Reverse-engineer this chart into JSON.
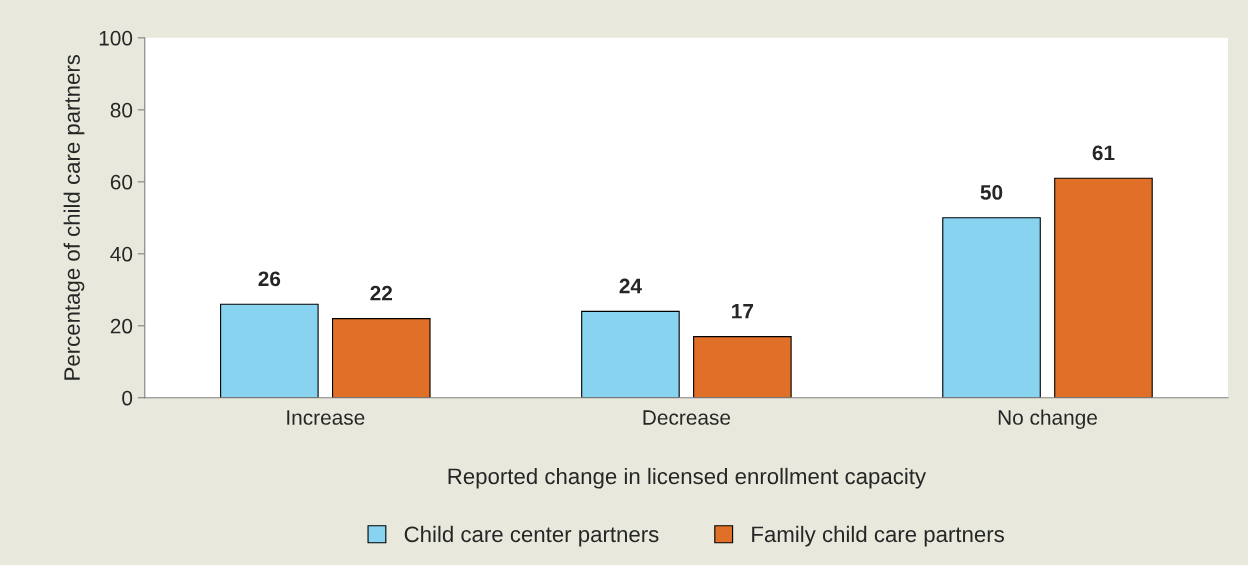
{
  "chart_data": {
    "type": "bar",
    "categories": [
      "Increase",
      "Decrease",
      "No change"
    ],
    "series": [
      {
        "name": "Child care center partners",
        "color": "#87d3f0",
        "values": [
          26,
          24,
          50
        ]
      },
      {
        "name": "Family child care partners",
        "color": "#e07028",
        "values": [
          22,
          17,
          61
        ]
      }
    ],
    "xlabel": "Reported change in licensed enrollment capacity",
    "ylabel": "Percentage of child care partners",
    "ylim": [
      0,
      100
    ],
    "yticks": [
      0,
      20,
      40,
      60,
      80,
      100
    ],
    "data_labels": true,
    "grid": false,
    "legend": "bottom"
  }
}
